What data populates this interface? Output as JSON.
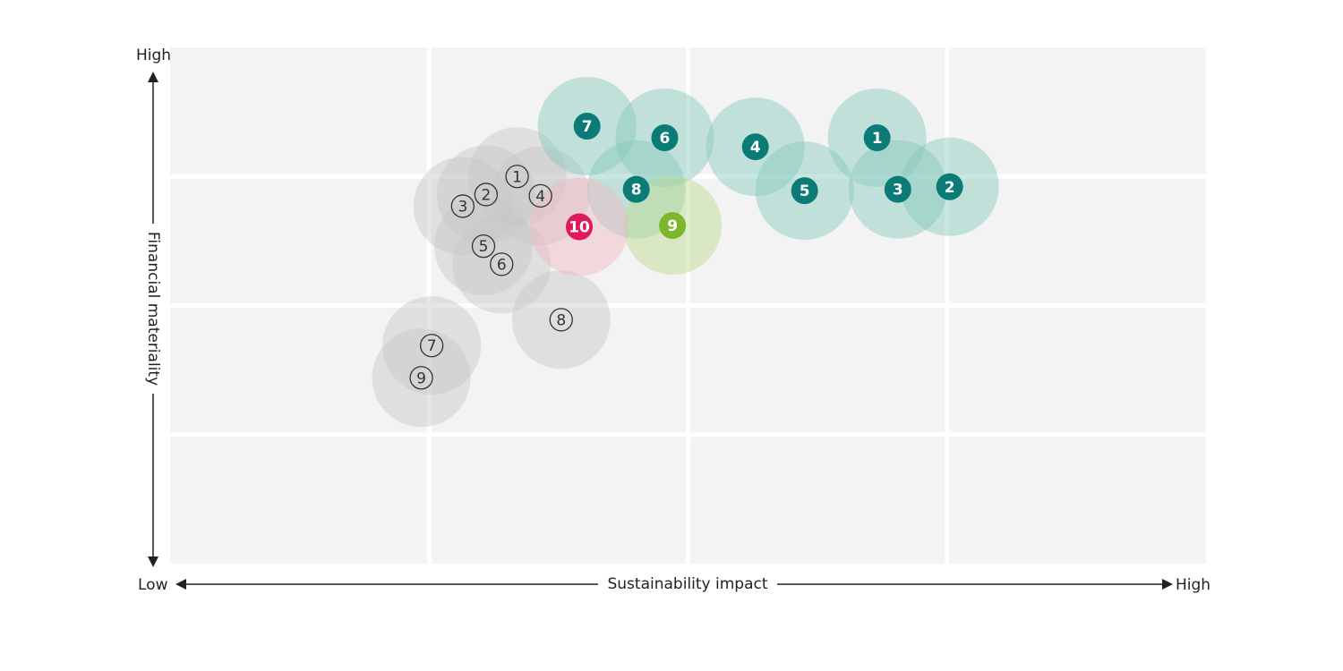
{
  "chart_data": {
    "type": "bubble_matrix",
    "x_label": "Sustainability impact",
    "y_label": "Financial materiality",
    "x_low_label": "Low",
    "x_high_label": "High",
    "y_high_label": "High",
    "xlim": [
      0,
      4
    ],
    "ylim": [
      0,
      4
    ],
    "grid_lines": [
      1,
      2,
      3
    ],
    "background": "#f3f3f3",
    "series": [
      {
        "color": "#c8c8c8",
        "marker_color": "#333333",
        "marker_style": "outline",
        "labels": [
          "1",
          "2",
          "3",
          "4",
          "5",
          "6",
          "7",
          "8",
          "9"
        ],
        "x": [
          1.34,
          1.22,
          1.13,
          1.43,
          1.21,
          1.28,
          1.01,
          1.51,
          0.97
        ],
        "values": [
          3.0,
          2.86,
          2.77,
          2.85,
          2.46,
          2.32,
          1.69,
          1.89,
          1.44
        ]
      },
      {
        "color": "#86c9ba",
        "marker_color": "#0b7b78",
        "marker_style": "filled",
        "labels": [
          "1",
          "2",
          "3",
          "4",
          "5",
          "6",
          "7",
          "8"
        ],
        "x": [
          2.73,
          3.01,
          2.81,
          2.26,
          2.45,
          1.91,
          1.61,
          1.8
        ],
        "values": [
          3.3,
          2.92,
          2.9,
          3.23,
          2.89,
          3.3,
          3.39,
          2.9
        ]
      },
      {
        "color": "#bcd98f",
        "marker_color": "#7ab82a",
        "marker_style": "filled",
        "labels": [
          "9"
        ],
        "x": [
          1.94
        ],
        "values": [
          2.62
        ]
      },
      {
        "color": "#f1b9c3",
        "marker_color": "#e0195a",
        "marker_style": "filled",
        "labels": [
          "10"
        ],
        "x": [
          1.58
        ],
        "values": [
          2.61
        ]
      }
    ]
  }
}
